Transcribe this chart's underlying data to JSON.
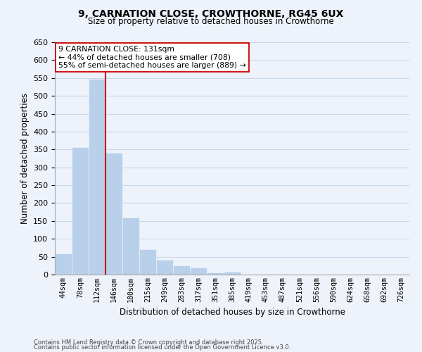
{
  "title_line1": "9, CARNATION CLOSE, CROWTHORNE, RG45 6UX",
  "title_line2": "Size of property relative to detached houses in Crowthorne",
  "bar_labels": [
    "44sqm",
    "78sqm",
    "112sqm",
    "146sqm",
    "180sqm",
    "215sqm",
    "249sqm",
    "283sqm",
    "317sqm",
    "351sqm",
    "385sqm",
    "419sqm",
    "453sqm",
    "487sqm",
    "521sqm",
    "556sqm",
    "590sqm",
    "624sqm",
    "658sqm",
    "692sqm",
    "726sqm"
  ],
  "bar_values": [
    60,
    357,
    547,
    340,
    160,
    70,
    42,
    25,
    20,
    5,
    8,
    0,
    0,
    0,
    0,
    0,
    0,
    0,
    0,
    0,
    0
  ],
  "bar_color": "#b8d0ea",
  "vline_color": "#cc0000",
  "vline_x_idx": 2.5,
  "ylabel": "Number of detached properties",
  "xlabel": "Distribution of detached houses by size in Crowthorne",
  "ylim": [
    0,
    650
  ],
  "yticks": [
    0,
    50,
    100,
    150,
    200,
    250,
    300,
    350,
    400,
    450,
    500,
    550,
    600,
    650
  ],
  "annotation_line1": "9 CARNATION CLOSE: 131sqm",
  "annotation_line2": "← 44% of detached houses are smaller (708)",
  "annotation_line3": "55% of semi-detached houses are larger (889) →",
  "grid_color": "#c8d8ec",
  "background_color": "#eef2fa",
  "footnote_line1": "Contains HM Land Registry data © Crown copyright and database right 2025.",
  "footnote_line2": "Contains public sector information licensed under the Open Government Licence v3.0."
}
